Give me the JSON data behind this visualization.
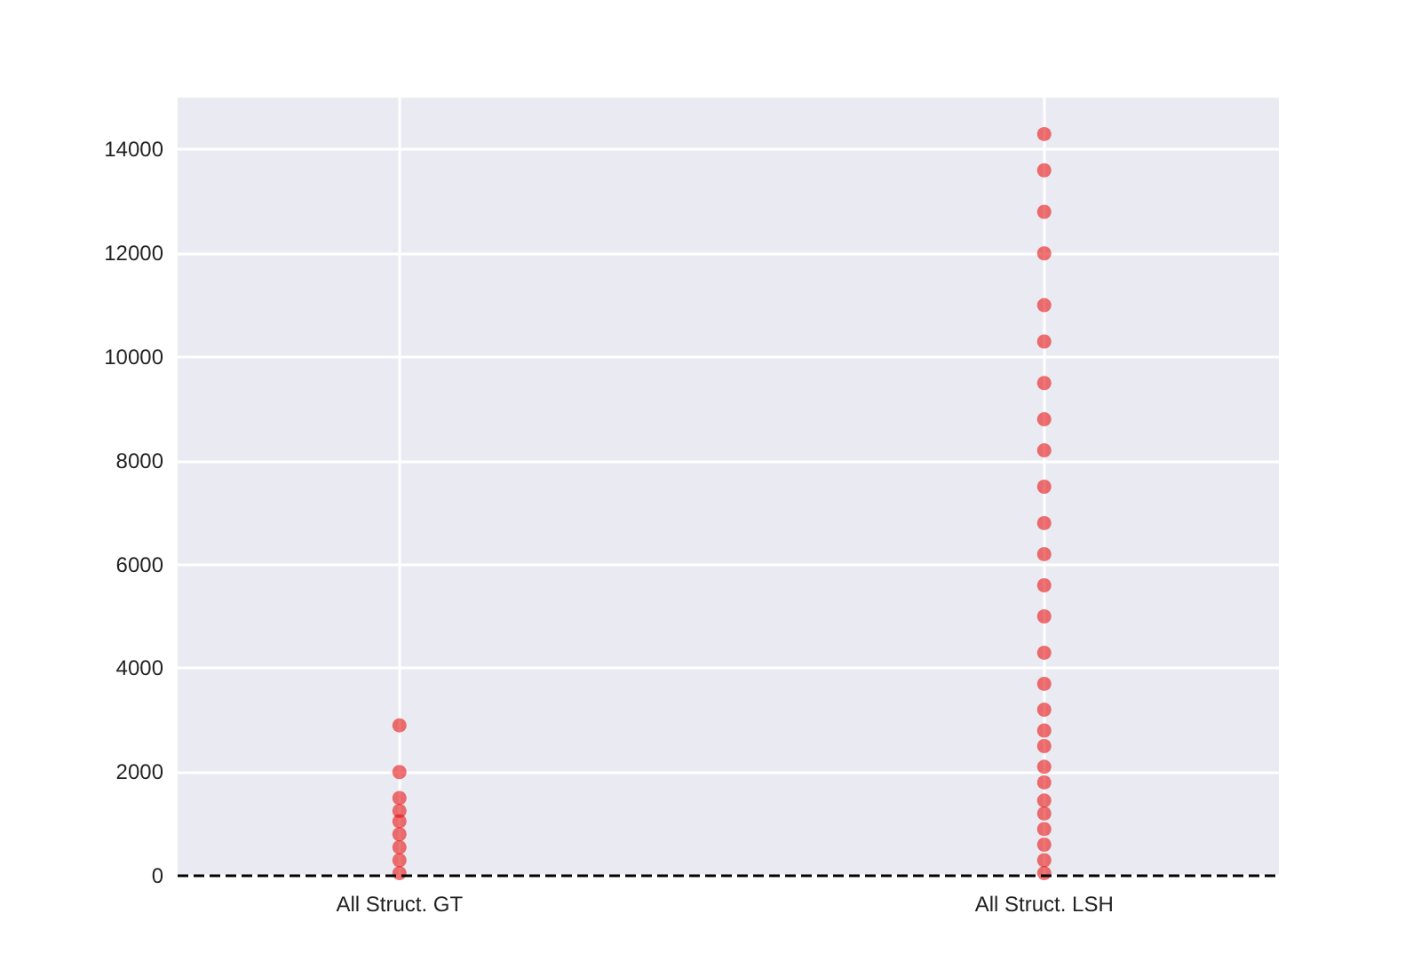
{
  "chart_data": {
    "type": "scatter",
    "categories": [
      "All Struct. GT",
      "All Struct. LSH"
    ],
    "series": [
      {
        "color": "#e50000",
        "x": [
          "All Struct. GT",
          "All Struct. GT",
          "All Struct. GT",
          "All Struct. GT",
          "All Struct. GT",
          "All Struct. GT",
          "All Struct. GT",
          "All Struct. GT",
          "All Struct. GT"
        ],
        "values": [
          50,
          300,
          550,
          800,
          1050,
          1250,
          1500,
          2000,
          2900
        ]
      },
      {
        "color": "#e50000",
        "x": [
          "All Struct. LSH",
          "All Struct. LSH",
          "All Struct. LSH",
          "All Struct. LSH",
          "All Struct. LSH",
          "All Struct. LSH",
          "All Struct. LSH",
          "All Struct. LSH",
          "All Struct. LSH",
          "All Struct. LSH",
          "All Struct. LSH",
          "All Struct. LSH",
          "All Struct. LSH",
          "All Struct. LSH",
          "All Struct. LSH",
          "All Struct. LSH",
          "All Struct. LSH",
          "All Struct. LSH",
          "All Struct. LSH",
          "All Struct. LSH",
          "All Struct. LSH",
          "All Struct. LSH",
          "All Struct. LSH",
          "All Struct. LSH",
          "All Struct. LSH",
          "All Struct. LSH",
          "All Struct. LSH"
        ],
        "values": [
          50,
          300,
          600,
          900,
          1200,
          1450,
          1800,
          2100,
          2500,
          2800,
          3200,
          3700,
          4300,
          5000,
          5600,
          6200,
          6800,
          7500,
          8200,
          8800,
          9500,
          10300,
          11000,
          12000,
          12800,
          13600,
          14300
        ]
      }
    ],
    "ylim": [
      0,
      15000
    ],
    "yticks": [
      0,
      2000,
      4000,
      6000,
      8000,
      10000,
      12000,
      14000
    ],
    "grid": true,
    "marker": "circle",
    "ref_lines": [
      {
        "axis": "y",
        "value": 0,
        "color": "#000000",
        "line_style": "dashed"
      }
    ]
  }
}
